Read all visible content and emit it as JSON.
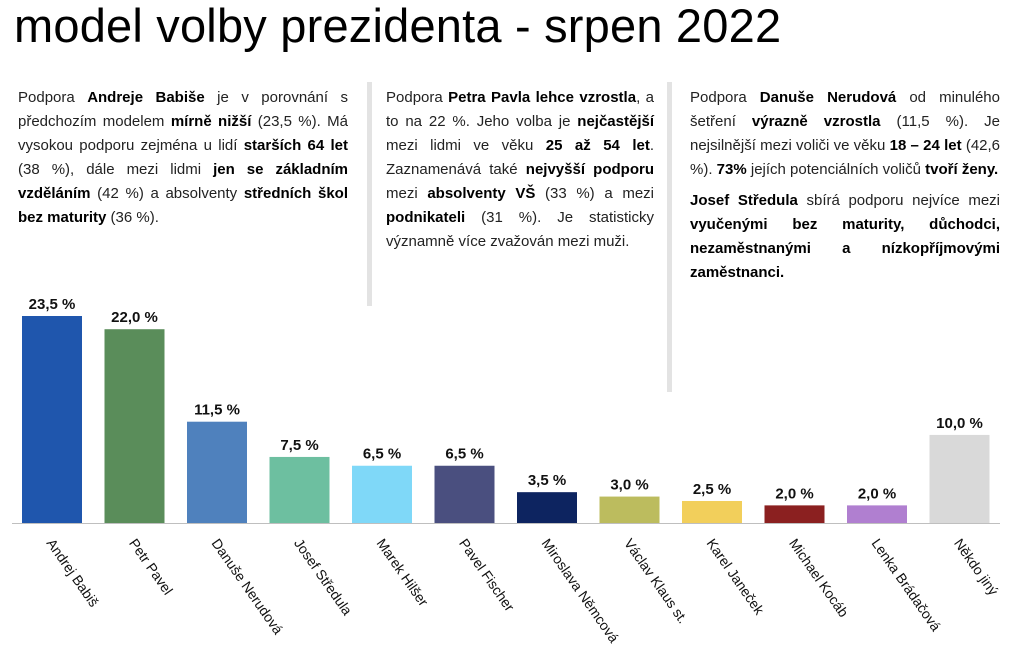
{
  "title": "model volby prezidenta - srpen 2022",
  "columns": [
    {
      "paragraphs": [
        [
          {
            "t": "Podpora "
          },
          {
            "t": "Andreje Babiše",
            "b": true
          },
          {
            "t": " je v porovnání s předchozím modelem "
          },
          {
            "t": "mírně nižší",
            "b": true
          },
          {
            "t": " (23,5 %). Má vysokou podporu zejména u lidí "
          },
          {
            "t": "starších 64 let",
            "b": true
          },
          {
            "t": " (38 %), dále mezi lidmi "
          },
          {
            "t": "jen se základním vzděláním",
            "b": true
          },
          {
            "t": " (42 %) a absolventy "
          },
          {
            "t": "středních škol bez maturity",
            "b": true
          },
          {
            "t": " (36 %)."
          }
        ]
      ]
    },
    {
      "paragraphs": [
        [
          {
            "t": "Podpora "
          },
          {
            "t": "Petra Pavla lehce vzrostla",
            "b": true
          },
          {
            "t": ", a to na 22 %. Jeho volba je "
          },
          {
            "t": "nejčastější",
            "b": true
          },
          {
            "t": " mezi lidmi ve věku "
          },
          {
            "t": "25 až 54 let",
            "b": true
          },
          {
            "t": ". Zaznamenává také "
          },
          {
            "t": "nejvyšší podporu",
            "b": true
          },
          {
            "t": " mezi "
          },
          {
            "t": "absolventy VŠ",
            "b": true
          },
          {
            "t": " (33 %) a mezi "
          },
          {
            "t": "podnikateli",
            "b": true
          },
          {
            "t": " (31 %). Je statisticky významně více zvažován mezi muži."
          }
        ]
      ]
    },
    {
      "paragraphs": [
        [
          {
            "t": "Podpora "
          },
          {
            "t": "Danuše Nerudová",
            "b": true
          },
          {
            "t": " od minulého šetření "
          },
          {
            "t": "výrazně vzrostla",
            "b": true
          },
          {
            "t": " (11,5 %). Je nejsilnější mezi voliči ve věku "
          },
          {
            "t": "18 – 24 let",
            "b": true
          },
          {
            "t": " (42,6 %). "
          },
          {
            "t": "73%",
            "b": true
          },
          {
            "t": " jejích potenciálních voličů "
          },
          {
            "t": "tvoří ženy.",
            "b": true
          }
        ],
        [
          {
            "t": "Josef Středula",
            "b": true
          },
          {
            "t": " sbírá podporu nejvíce mezi "
          },
          {
            "t": "vyučenými bez maturity, důchodci, nezaměstnanými a nízkopříjmovými zaměstnanci.",
            "b": true
          }
        ]
      ]
    }
  ],
  "chart_data": {
    "type": "bar",
    "categories": [
      "Andrej Babiš",
      "Petr Pavel",
      "Danuše Nerudová",
      "Josef Středula",
      "Marek Hilšer",
      "Pavel Fischer",
      "Miroslava Němcová",
      "Václav Klaus st.",
      "Karel Janeček",
      "Michael Kocáb",
      "Lenka Brádačová",
      "Někdo jiný"
    ],
    "values": [
      23.5,
      22.0,
      11.5,
      7.5,
      6.5,
      6.5,
      3.5,
      3.0,
      2.5,
      2.0,
      2.0,
      10.0
    ],
    "data_labels": [
      "23,5 %",
      "22,0 %",
      "11,5 %",
      "7,5 %",
      "6,5 %",
      "6,5 %",
      "3,5 %",
      "3,0 %",
      "2,5 %",
      "2,0 %",
      "2,0 %",
      "10,0 %"
    ],
    "colors": [
      "#1f56ad",
      "#5a8d5a",
      "#4f81bd",
      "#6dbfa0",
      "#7fd8f8",
      "#4a4f7f",
      "#0d2460",
      "#bcbc5e",
      "#f2cf5b",
      "#8b2020",
      "#b07fd0",
      "#d9d9d9"
    ],
    "title": "",
    "xlabel": "",
    "ylabel": "",
    "ylim": [
      0,
      23.5
    ],
    "grid": false,
    "legend": "none",
    "value_axis_visible": false
  }
}
